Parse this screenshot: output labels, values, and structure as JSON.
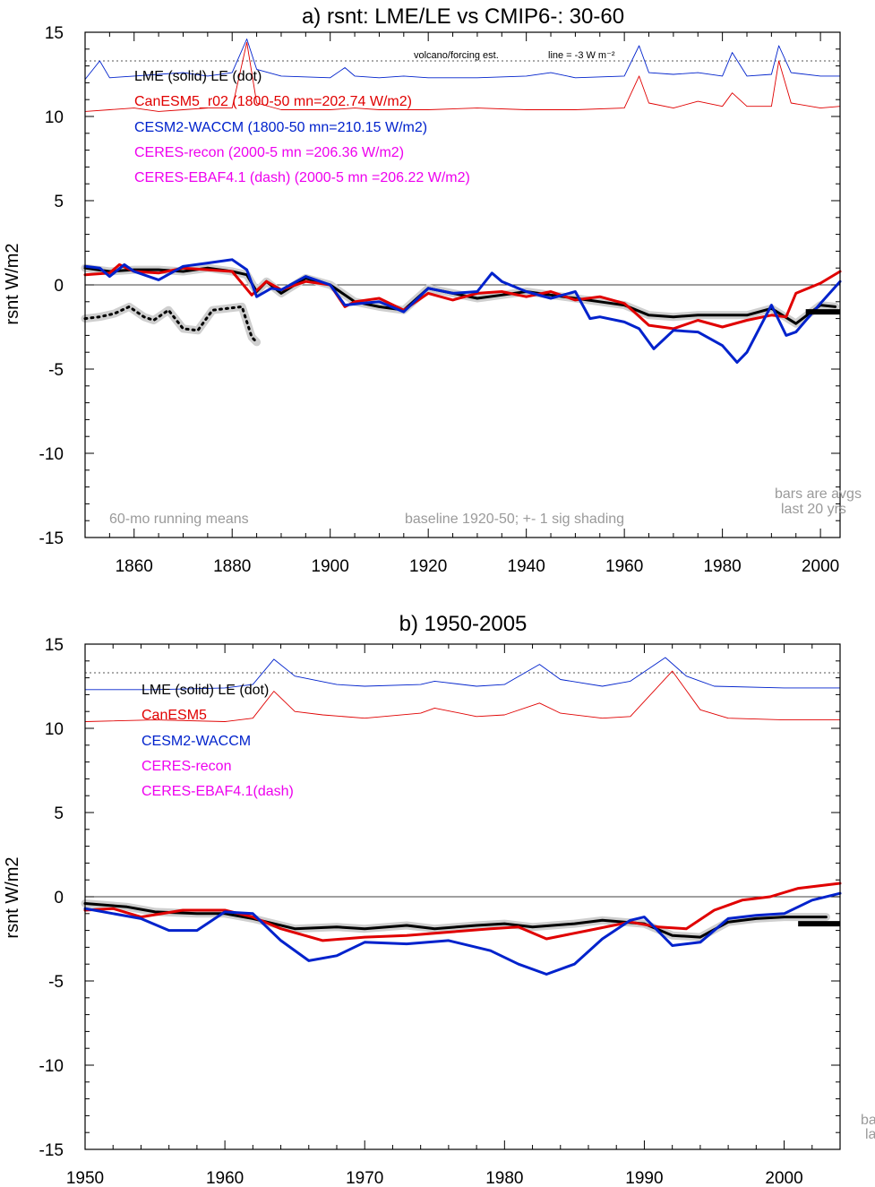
{
  "charts": [
    {
      "title": "a) rsnt: LME/LE vs CMIP6-: 30-60",
      "ylabel": "rsnt W/m2",
      "xlim": [
        1850,
        2004
      ],
      "ylim": [
        -15,
        15
      ],
      "xticks": [
        1860,
        1880,
        1900,
        1920,
        1940,
        1960,
        1980,
        2000
      ],
      "yticks": [
        15,
        10,
        5,
        0,
        -5,
        -10,
        -15
      ],
      "legend": [
        {
          "text": "LME (solid)   LE (dot)",
          "color": "#000000"
        },
        {
          "text": "CanESM5_r02 (1800-50 mn=202.74 W/m2)",
          "color": "#e00000"
        },
        {
          "text": "CESM2-WACCM (1800-50 mn=210.15 W/m2)",
          "color": "#0022cc"
        },
        {
          "text": "CERES-recon (2000-5 mn =206.36 W/m2)",
          "color": "#ee00ee"
        },
        {
          "text": "CERES-EBAF4.1 (dash) (2000-5 mn =206.22 W/m2)",
          "color": "#ee00ee"
        }
      ],
      "notes": {
        "left": "60-mo running means",
        "center": "baseline 1920-50; +- 1 sig shading",
        "right1": "bars are avgs",
        "right2": "last 20 yrs",
        "volcano": "volcano/forcing est.",
        "line": "line = -3 W m⁻²"
      }
    },
    {
      "title": "b) 1950-2005",
      "ylabel": "rsnt W/m2",
      "xlim": [
        1950,
        2004
      ],
      "ylim": [
        -15,
        15
      ],
      "xticks": [
        1950,
        1960,
        1970,
        1980,
        1990,
        2000
      ],
      "yticks": [
        15,
        10,
        5,
        0,
        -5,
        -10,
        -15
      ],
      "legend": [
        {
          "text": "LME (solid)     LE (dot)",
          "color": "#000000"
        },
        {
          "text": "CanESM5",
          "color": "#e00000"
        },
        {
          "text": "CESM2-WACCM",
          "color": "#0022cc"
        },
        {
          "text": "CERES-recon",
          "color": "#ee00ee"
        },
        {
          "text": "CERES-EBAF4.1(dash)",
          "color": "#ee00ee"
        }
      ],
      "notes": {
        "right1": "ba",
        "right2": "la"
      }
    }
  ],
  "chart_data": [
    {
      "type": "line",
      "title": "a) rsnt: LME/LE vs CMIP6-: 30-60",
      "ylabel": "rsnt W/m2",
      "xlim": [
        1850,
        2004
      ],
      "ylim": [
        -15,
        15
      ],
      "reference_line": -3,
      "series": [
        {
          "name": "LME (solid)",
          "color": "#000000",
          "style": "solid",
          "x": [
            1850,
            1855,
            1860,
            1865,
            1870,
            1875,
            1880,
            1883,
            1885,
            1887,
            1890,
            1895,
            1900,
            1905,
            1910,
            1915,
            1920,
            1925,
            1930,
            1935,
            1940,
            1945,
            1950,
            1955,
            1960,
            1965,
            1970,
            1975,
            1980,
            1985,
            1990,
            1995,
            2000,
            2003
          ],
          "y": [
            1.0,
            0.8,
            0.9,
            0.9,
            0.8,
            1.0,
            0.8,
            0.6,
            -0.4,
            0.2,
            -0.5,
            0.4,
            0.0,
            -1.0,
            -1.3,
            -1.5,
            -0.2,
            -0.5,
            -0.8,
            -0.6,
            -0.4,
            -0.6,
            -0.8,
            -1.0,
            -1.2,
            -1.8,
            -1.9,
            -1.8,
            -1.8,
            -1.8,
            -1.4,
            -2.3,
            -1.2,
            -1.3
          ]
        },
        {
          "name": "LE (dot)",
          "color": "#000000",
          "style": "dot",
          "x": [
            1850,
            1853,
            1856,
            1859,
            1862,
            1864,
            1867,
            1870,
            1873,
            1876,
            1879,
            1882,
            1884,
            1885
          ],
          "y": [
            -2.0,
            -1.9,
            -1.7,
            -1.3,
            -1.9,
            -2.1,
            -1.5,
            -2.6,
            -2.7,
            -1.5,
            -1.4,
            -1.3,
            -3.1,
            -3.4
          ]
        },
        {
          "name": "CanESM5_r02",
          "color": "#e00000",
          "style": "solid",
          "x": [
            1850,
            1855,
            1857,
            1860,
            1865,
            1870,
            1875,
            1880,
            1884,
            1887,
            1890,
            1895,
            1900,
            1903,
            1905,
            1910,
            1915,
            1920,
            1925,
            1930,
            1935,
            1940,
            1945,
            1950,
            1955,
            1960,
            1962,
            1965,
            1970,
            1975,
            1980,
            1985,
            1990,
            1993,
            1995,
            2000,
            2004
          ],
          "y": [
            0.6,
            0.7,
            1.2,
            0.8,
            0.7,
            1.0,
            0.9,
            0.8,
            -0.6,
            0.2,
            -0.3,
            0.2,
            0.0,
            -1.3,
            -1.0,
            -0.8,
            -1.5,
            -0.5,
            -0.9,
            -0.5,
            -0.4,
            -0.7,
            -0.4,
            -0.9,
            -0.7,
            -1.1,
            -1.6,
            -2.4,
            -2.6,
            -2.1,
            -2.5,
            -2.1,
            -1.8,
            -1.9,
            -0.5,
            0.1,
            0.8
          ]
        },
        {
          "name": "CESM2-WACCM",
          "color": "#0022cc",
          "style": "solid",
          "x": [
            1850,
            1853,
            1855,
            1858,
            1860,
            1865,
            1870,
            1875,
            1880,
            1883,
            1885,
            1888,
            1890,
            1895,
            1900,
            1903,
            1906,
            1910,
            1915,
            1920,
            1925,
            1930,
            1933,
            1935,
            1940,
            1945,
            1950,
            1953,
            1955,
            1960,
            1963,
            1966,
            1970,
            1975,
            1980,
            1983,
            1985,
            1990,
            1993,
            1995,
            2000,
            2004
          ],
          "y": [
            1.1,
            1.0,
            0.5,
            1.2,
            0.8,
            0.3,
            1.1,
            1.3,
            1.5,
            0.9,
            -0.7,
            -0.2,
            -0.3,
            0.5,
            0.0,
            -1.2,
            -1.1,
            -1.0,
            -1.6,
            -0.2,
            -0.5,
            -0.4,
            0.7,
            0.2,
            -0.4,
            -0.8,
            -0.4,
            -2.0,
            -1.9,
            -2.2,
            -2.6,
            -3.8,
            -2.7,
            -2.8,
            -3.6,
            -4.6,
            -4.0,
            -1.2,
            -3.0,
            -2.8,
            -1.1,
            0.2
          ]
        }
      ],
      "forcing_estimates": [
        {
          "name": "CESM2-WACCM",
          "color": "#0022cc",
          "x": [
            1850,
            1853,
            1855,
            1860,
            1865,
            1870,
            1875,
            1880,
            1883,
            1885,
            1890,
            1900,
            1903,
            1905,
            1910,
            1915,
            1920,
            1930,
            1940,
            1945,
            1950,
            1960,
            1963,
            1965,
            1970,
            1975,
            1980,
            1982,
            1985,
            1990,
            1991.5,
            1994,
            2000,
            2004
          ],
          "y": [
            12.2,
            13.3,
            12.3,
            12.4,
            12.5,
            12.6,
            12.4,
            12.6,
            14.6,
            12.8,
            12.4,
            12.3,
            12.9,
            12.4,
            12.3,
            12.4,
            12.3,
            12.3,
            12.4,
            12.6,
            12.3,
            12.4,
            14.2,
            12.6,
            12.5,
            12.6,
            12.4,
            13.8,
            12.4,
            12.5,
            14.2,
            12.6,
            12.4,
            12.4
          ]
        },
        {
          "name": "CanESM5_r02",
          "color": "#e00000",
          "x": [
            1850,
            1855,
            1860,
            1865,
            1870,
            1875,
            1880,
            1883,
            1885,
            1890,
            1900,
            1905,
            1910,
            1920,
            1930,
            1940,
            1950,
            1960,
            1963,
            1965,
            1970,
            1975,
            1980,
            1982,
            1985,
            1990,
            1991.5,
            1994,
            2000,
            2004
          ],
          "y": [
            10.3,
            10.4,
            10.5,
            10.3,
            10.4,
            10.5,
            10.5,
            14.4,
            10.8,
            10.4,
            10.4,
            10.5,
            10.4,
            10.4,
            10.5,
            10.4,
            10.4,
            10.5,
            12.4,
            10.8,
            10.5,
            10.9,
            10.6,
            11.4,
            10.6,
            10.6,
            13.3,
            10.8,
            10.5,
            10.6
          ]
        }
      ]
    },
    {
      "type": "line",
      "title": "b) 1950-2005",
      "ylabel": "rsnt W/m2",
      "xlim": [
        1950,
        2004
      ],
      "ylim": [
        -15,
        15
      ],
      "reference_line": -3,
      "series": [
        {
          "name": "LME (solid)",
          "color": "#000000",
          "style": "solid",
          "x": [
            1950,
            1953,
            1955,
            1958,
            1960,
            1962,
            1965,
            1968,
            1970,
            1973,
            1975,
            1978,
            1980,
            1982,
            1985,
            1987,
            1990,
            1992,
            1994,
            1996,
            1998,
            2000,
            2003
          ],
          "y": [
            -0.4,
            -0.6,
            -0.9,
            -1.0,
            -1.0,
            -1.3,
            -1.9,
            -1.8,
            -1.9,
            -1.7,
            -1.9,
            -1.7,
            -1.6,
            -1.8,
            -1.6,
            -1.4,
            -1.6,
            -2.3,
            -2.4,
            -1.5,
            -1.3,
            -1.2,
            -1.2
          ]
        },
        {
          "name": "CanESM5",
          "color": "#e00000",
          "style": "solid",
          "x": [
            1950,
            1952,
            1954,
            1957,
            1960,
            1962,
            1964,
            1967,
            1970,
            1973,
            1976,
            1979,
            1981,
            1983,
            1986,
            1989,
            1991,
            1993,
            1995,
            1997,
            1999,
            2001,
            2004
          ],
          "y": [
            -0.8,
            -0.7,
            -1.2,
            -0.8,
            -0.8,
            -1.2,
            -1.9,
            -2.6,
            -2.4,
            -2.3,
            -2.1,
            -1.9,
            -1.8,
            -2.5,
            -2.0,
            -1.5,
            -1.8,
            -1.9,
            -0.8,
            -0.2,
            0.0,
            0.5,
            0.8
          ]
        },
        {
          "name": "CESM2-WACCM",
          "color": "#0022cc",
          "style": "solid",
          "x": [
            1950,
            1952,
            1954,
            1956,
            1958,
            1960,
            1962,
            1964,
            1966,
            1968,
            1970,
            1973,
            1976,
            1979,
            1981,
            1983,
            1985,
            1987,
            1989,
            1990,
            1992,
            1994,
            1996,
            1998,
            2000,
            2002,
            2004
          ],
          "y": [
            -0.7,
            -1.0,
            -1.3,
            -2.0,
            -2.0,
            -0.9,
            -1.0,
            -2.6,
            -3.8,
            -3.5,
            -2.7,
            -2.8,
            -2.6,
            -3.2,
            -4.0,
            -4.6,
            -4.0,
            -2.5,
            -1.4,
            -1.2,
            -2.9,
            -2.7,
            -1.3,
            -1.1,
            -1.0,
            -0.2,
            0.2
          ]
        }
      ],
      "forcing_estimates": [
        {
          "name": "CESM2-WACCM",
          "color": "#0022cc",
          "x": [
            1950,
            1955,
            1960,
            1962,
            1963.5,
            1965,
            1968,
            1970,
            1974,
            1975,
            1978,
            1980,
            1982.5,
            1984,
            1987,
            1989,
            1991.5,
            1993,
            1995,
            2000,
            2004
          ],
          "y": [
            12.3,
            12.3,
            12.4,
            12.6,
            14.1,
            13.1,
            12.6,
            12.5,
            12.6,
            12.8,
            12.5,
            12.6,
            13.8,
            12.9,
            12.5,
            12.8,
            14.2,
            13.1,
            12.5,
            12.4,
            12.4
          ]
        },
        {
          "name": "CanESM5",
          "color": "#e00000",
          "x": [
            1950,
            1955,
            1960,
            1962,
            1963.5,
            1965,
            1967,
            1970,
            1974,
            1975,
            1978,
            1980,
            1982.5,
            1984,
            1987,
            1989,
            1992,
            1994,
            1996,
            2000,
            2004
          ],
          "y": [
            10.4,
            10.5,
            10.4,
            10.6,
            12.2,
            11.0,
            10.8,
            10.6,
            10.9,
            11.2,
            10.7,
            10.8,
            11.5,
            10.9,
            10.6,
            10.7,
            13.4,
            11.1,
            10.6,
            10.5,
            10.5
          ]
        }
      ]
    }
  ]
}
